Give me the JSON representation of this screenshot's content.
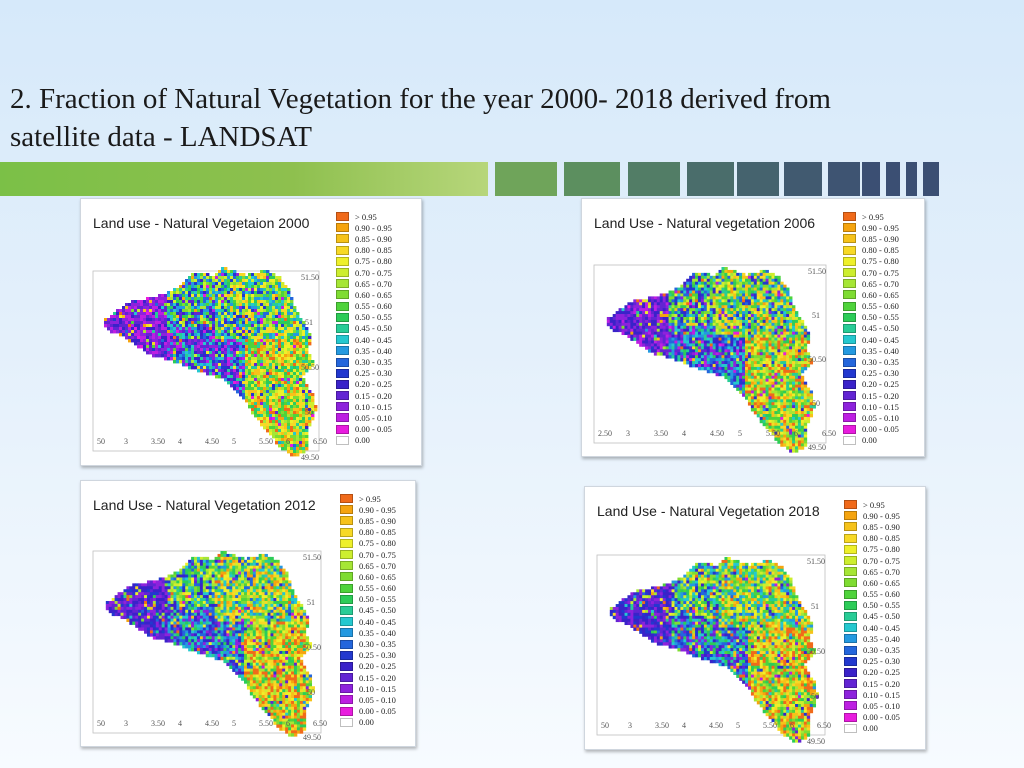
{
  "slide": {
    "title_line1": "2. Fraction of Natural Vegetation for the year 2000- 2018 derived from",
    "title_line2": "satellite data - LANDSAT"
  },
  "colors": {
    "title_bar_green": "#7bc047",
    "title_bar_blocks": [
      "#6fa45a",
      "#5c8f5f",
      "#527d66",
      "#4a6d6b",
      "#45636e",
      "#415a70",
      "#3e5472",
      "#3b4f73"
    ]
  },
  "legend": {
    "items": [
      {
        "label": ">  0.95",
        "color": "#f06a1a"
      },
      {
        "label": "0.90 -  0.95",
        "color": "#f5a40f"
      },
      {
        "label": "0.85 -  0.90",
        "color": "#f6c21a"
      },
      {
        "label": "0.80 -  0.85",
        "color": "#f7d926"
      },
      {
        "label": "0.75 -  0.80",
        "color": "#eef02a"
      },
      {
        "label": "0.70 -  0.75",
        "color": "#cdee2e"
      },
      {
        "label": "0.65 -  0.70",
        "color": "#a6e635"
      },
      {
        "label": "0.60 -  0.65",
        "color": "#7fdc32"
      },
      {
        "label": "0.55 -  0.60",
        "color": "#4fd33b"
      },
      {
        "label": "0.50 -  0.55",
        "color": "#2ccc58"
      },
      {
        "label": "0.45 -  0.50",
        "color": "#28cc96"
      },
      {
        "label": "0.40 -  0.45",
        "color": "#25c8cf"
      },
      {
        "label": "0.35 -  0.40",
        "color": "#2499e0"
      },
      {
        "label": "0.30 -  0.35",
        "color": "#2466dc"
      },
      {
        "label": "0.25 -  0.30",
        "color": "#2238cf"
      },
      {
        "label": "0.20 -  0.25",
        "color": "#3a22c9"
      },
      {
        "label": "0.15 -  0.20",
        "color": "#6224d3"
      },
      {
        "label": "0.10 -  0.15",
        "color": "#8d22dc"
      },
      {
        "label": "0.05 -  0.10",
        "color": "#bd1fe2"
      },
      {
        "label": "0.00 -  0.05",
        "color": "#e81cde"
      },
      {
        "label": "0.00",
        "color": "#ffffff"
      }
    ]
  },
  "axes": {
    "x_ticks": [
      "2.50",
      "3",
      "3.50",
      "4",
      "4.50",
      "5",
      "5.50",
      "6",
      "6.50"
    ],
    "y_ticks": [
      "51.50",
      "51",
      "50.50",
      "50",
      "49.50"
    ]
  },
  "panels": [
    {
      "title": "Land use - Natural Vegetaion 2000",
      "year": 2000,
      "x_tick_labels": [
        "50",
        "3",
        "3.50",
        "4",
        "4.50",
        "5",
        "5.50",
        "6",
        "6.50"
      ]
    },
    {
      "title": "Land Use - Natural vegetation 2006",
      "year": 2006,
      "x_tick_labels": [
        "2.50",
        "3",
        "3.50",
        "4",
        "4.50",
        "5",
        "5.50",
        "6",
        "6.50"
      ]
    },
    {
      "title": "Land Use - Natural Vegetation 2012",
      "year": 2012,
      "x_tick_labels": [
        "50",
        "3",
        "3.50",
        "4",
        "4.50",
        "5",
        "5.50",
        "6",
        "6.50"
      ]
    },
    {
      "title": "Land Use - Natural Vegetation 2018",
      "year": 2018,
      "x_tick_labels": [
        "50",
        "3",
        "3.50",
        "4",
        "4.50",
        "5",
        "5.50",
        "6",
        "6.50"
      ]
    }
  ]
}
